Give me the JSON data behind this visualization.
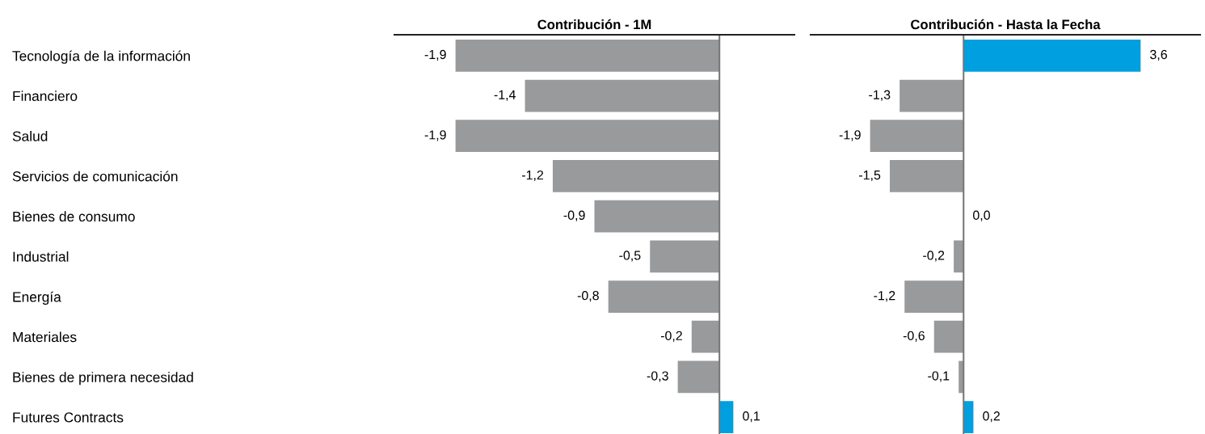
{
  "chart_data": [
    {
      "type": "bar",
      "orientation": "horizontal",
      "title": "Contribución - 1M",
      "categories": [
        "Tecnología de la información",
        "Financiero",
        "Salud",
        "Servicios de comunicación",
        "Bienes de consumo",
        "Industrial",
        "Energía",
        "Materiales",
        "Bienes de primera necesidad",
        "Futures Contracts"
      ],
      "values": [
        -1.9,
        -1.4,
        -1.9,
        -1.2,
        -0.9,
        -0.5,
        -0.8,
        -0.2,
        -0.3,
        0.1
      ],
      "value_labels": [
        "-1,9",
        "-1,4",
        "-1,9",
        "-1,2",
        "-0,9",
        "-0,5",
        "-0,8",
        "-0,2",
        "-0,3",
        "0,1"
      ],
      "colors": [
        "#999a9c",
        "#999a9c",
        "#999a9c",
        "#999a9c",
        "#999a9c",
        "#999a9c",
        "#999a9c",
        "#999a9c",
        "#999a9c",
        "#009fdf"
      ]
    },
    {
      "type": "bar",
      "orientation": "horizontal",
      "title": "Contribución - Hasta la Fecha",
      "values": [
        3.6,
        -1.3,
        -1.9,
        -1.5,
        0.0,
        -0.2,
        -1.2,
        -0.6,
        -0.1,
        0.2
      ],
      "value_labels": [
        "3,6",
        "-1,3",
        "-1,9",
        "-1,5",
        "0,0",
        "-0,2",
        "-1,2",
        "-0,6",
        "-0,1",
        "0,2"
      ],
      "colors": [
        "#009fdf",
        "#999a9c",
        "#999a9c",
        "#999a9c",
        "#999a9c",
        "#999a9c",
        "#999a9c",
        "#999a9c",
        "#999a9c",
        "#009fdf"
      ]
    }
  ]
}
